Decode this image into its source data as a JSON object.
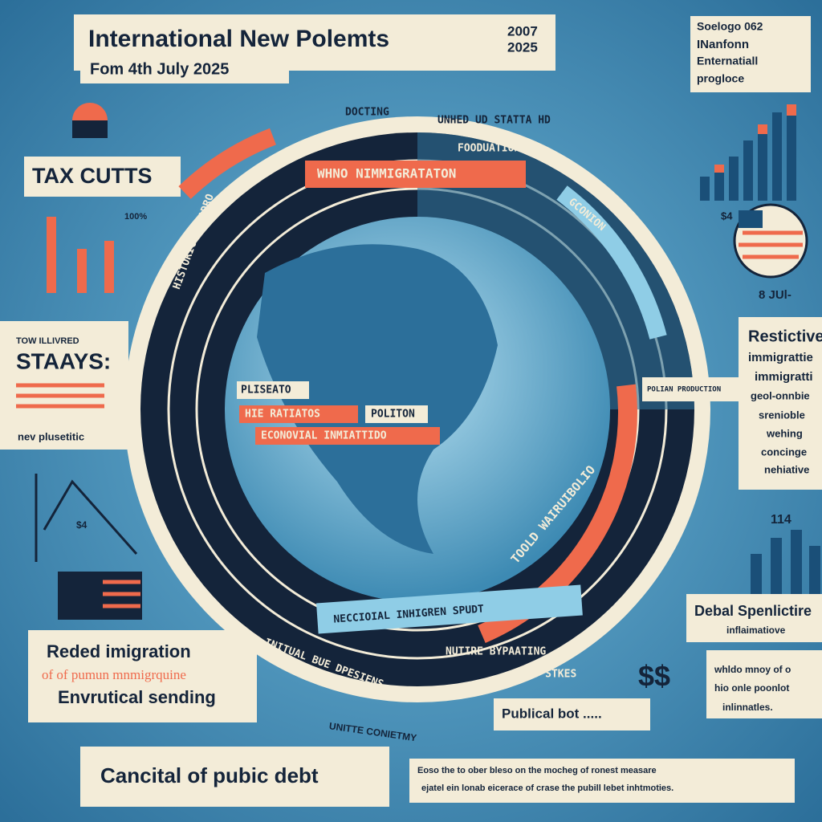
{
  "header": {
    "title": "International  New Polemts",
    "years": [
      "2007",
      "2025"
    ],
    "subtitle": "Fom 4th July 2025"
  },
  "top_right": {
    "lines": [
      "Soelogo 062",
      "INanfonn",
      "Enternatiall",
      "progloce"
    ]
  },
  "left": {
    "tax": "TAX CUTTS",
    "percent": "100%",
    "stays_small": "TOW ILLIVRED",
    "stays": "STAAYS:",
    "stays_note": "nev plusetitic",
    "debt_mark": "$4"
  },
  "right": {
    "restrictive": [
      "Restictive",
      "immigrattie",
      "immigratti",
      "geol-onnbie",
      "srenioble",
      "wehing",
      "concinge",
      "nehiative"
    ],
    "flag_label": "8 JUl-",
    "price": "$4",
    "bar_value": "114"
  },
  "ring": {
    "labels": [
      "DOCTING",
      "UNHED UD STATTA HD",
      "FOODUATION",
      "WHNO NIMMIGRATATON",
      "HISTORIC VARADRO",
      "GCONION",
      "POLIAN PRODUCTION",
      "TOOLD WAIRUIBOLIO"
    ],
    "center": [
      "PLISEATO",
      "HIE RATIATOS",
      "POLITON",
      "ECONOVIAL INMIATTIDO"
    ],
    "bottom": "NECCIOIAL INHIGREN SPUDT",
    "bottom_small": [
      "NUTIRE BYPAATING",
      "HIAS STKES",
      "INITUAL BUE DPESIENS"
    ]
  },
  "bottom_left": {
    "lines": [
      "Reded imigration",
      "of of pumun mnmigrquine",
      "Envrutical sending"
    ]
  },
  "bottom_right": {
    "title": "Debal Spenlictire",
    "subtitle": "inflaimatiove",
    "lines": [
      "whldo mnoy of o",
      "hio onle poonlot",
      "inlinnatles."
    ],
    "dollars": "$$"
  },
  "bottom": {
    "debt": "Cancital of pubic debt",
    "country": "UNITTE CONIETMY",
    "public": "Publical bot .....",
    "footnote": [
      "Eoso the to ober bleso on  the mocheg of ronest measare",
      "ejatel ein lonab eicerace of crase the pubill lebet inhtmoties."
    ]
  }
}
